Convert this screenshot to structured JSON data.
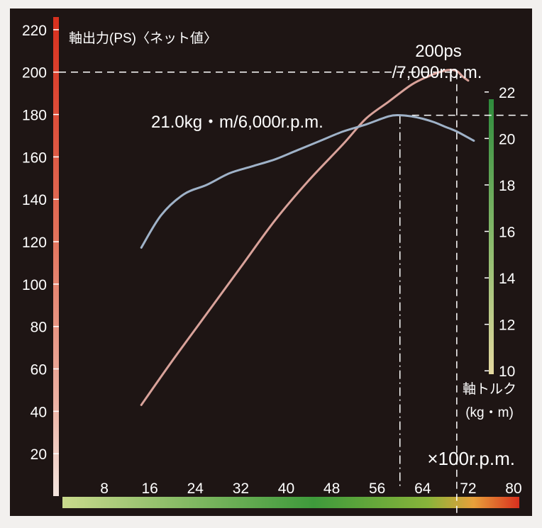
{
  "chart_data": {
    "type": "line",
    "title": "",
    "xlabel": "×100r.p.m.",
    "x_ticks": [
      8,
      16,
      24,
      32,
      40,
      48,
      56,
      64,
      72,
      80
    ],
    "xlim": [
      0,
      82
    ],
    "left_axis": {
      "label": "軸出力(PS)〈ネット値〉",
      "ticks": [
        20,
        40,
        60,
        80,
        100,
        120,
        140,
        160,
        180,
        200,
        220
      ],
      "ylim": [
        0,
        230
      ]
    },
    "right_axis": {
      "label_line1": "軸トルク",
      "label_line2": "(kg・m)",
      "ticks": [
        10,
        12,
        14,
        16,
        18,
        20,
        22
      ],
      "ylim": [
        9,
        23
      ]
    },
    "series": [
      {
        "axis": "left",
        "color": "#d9a29a",
        "x": [
          14.5,
          20,
          26,
          32,
          38,
          44,
          50,
          54,
          58,
          62,
          65,
          67,
          68.5,
          70,
          71,
          72
        ],
        "y": [
          43,
          64,
          86,
          108,
          130,
          149,
          166,
          178,
          186,
          194,
          198,
          200,
          201,
          200.5,
          198,
          196
        ]
      },
      {
        "axis": "right",
        "color": "#9fb2c8",
        "x": [
          14.5,
          18,
          22,
          26,
          30,
          34,
          38,
          42,
          46,
          50,
          54,
          58,
          60,
          62,
          64,
          66,
          68,
          70,
          73
        ],
        "y": [
          15.3,
          16.7,
          17.6,
          18.0,
          18.5,
          18.8,
          19.1,
          19.5,
          19.9,
          20.3,
          20.6,
          20.95,
          21.0,
          20.95,
          20.85,
          20.7,
          20.5,
          20.3,
          19.9
        ]
      }
    ],
    "annotations": {
      "peak_power_line1": "200ps",
      "peak_power_line2": "/7,000r.p.m.",
      "peak_torque": "21.0kg・m/6,000r.p.m."
    },
    "peak_power": {
      "x": 70,
      "y": 200
    },
    "peak_torque": {
      "x": 60,
      "y": 21.0
    }
  }
}
